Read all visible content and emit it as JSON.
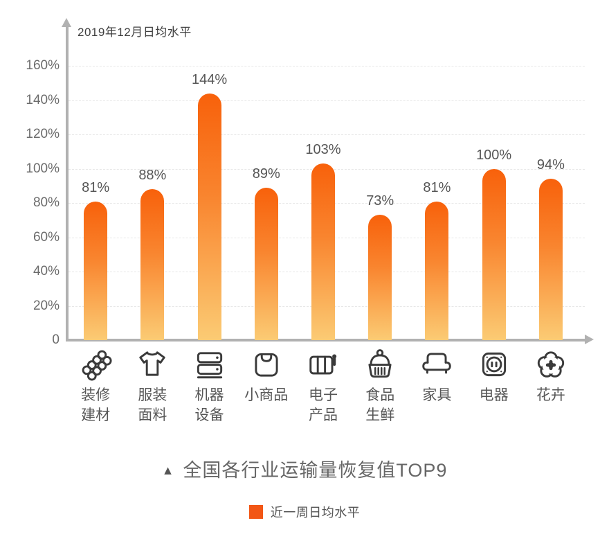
{
  "axis": {
    "title": "2019年12月日均水平"
  },
  "chart_data": {
    "type": "bar",
    "title": "全国各行业运输量恢复值TOP9",
    "ylabel": "2019年12月日均水平",
    "ylim": [
      0,
      170
    ],
    "grid": "horizontal dashed",
    "legend_position": "bottom-center",
    "categories": [
      "装修建材",
      "服装面料",
      "机器设备",
      "小商品",
      "电子产品",
      "食品生鲜",
      "家具",
      "电器",
      "花卉"
    ],
    "values": [
      81,
      88,
      144,
      89,
      103,
      73,
      81,
      100,
      94
    ],
    "value_labels": [
      "81%",
      "88%",
      "144%",
      "89%",
      "103%",
      "73%",
      "81%",
      "100%",
      "94%"
    ],
    "yticks": [
      {
        "value": 0,
        "label": "0"
      },
      {
        "value": 20,
        "label": "20%"
      },
      {
        "value": 40,
        "label": "40%"
      },
      {
        "value": 60,
        "label": "60%"
      },
      {
        "value": 80,
        "label": "80%"
      },
      {
        "value": 100,
        "label": "100%"
      },
      {
        "value": 120,
        "label": "120%"
      },
      {
        "value": 140,
        "label": "140%"
      },
      {
        "value": 160,
        "label": "160%"
      }
    ],
    "bars": [
      {
        "label": "装修建材",
        "lines": [
          "装修",
          "建材"
        ],
        "icon": "pipes-icon",
        "value": 81,
        "value_label": "81%"
      },
      {
        "label": "服装面料",
        "lines": [
          "服装",
          "面料"
        ],
        "icon": "tshirt-icon",
        "value": 88,
        "value_label": "88%"
      },
      {
        "label": "机器设备",
        "lines": [
          "机器",
          "设备"
        ],
        "icon": "machines-icon",
        "value": 144,
        "value_label": "144%"
      },
      {
        "label": "小商品",
        "lines": [
          "小商品"
        ],
        "icon": "shopping-bag-icon",
        "value": 89,
        "value_label": "89%"
      },
      {
        "label": "电子产品",
        "lines": [
          "电子",
          "产品"
        ],
        "icon": "battery-icon",
        "value": 103,
        "value_label": "103%"
      },
      {
        "label": "食品生鲜",
        "lines": [
          "食品",
          "生鲜"
        ],
        "icon": "food-basket-icon",
        "value": 73,
        "value_label": "73%"
      },
      {
        "label": "家具",
        "lines": [
          "家具"
        ],
        "icon": "sofa-icon",
        "value": 81,
        "value_label": "81%"
      },
      {
        "label": "电器",
        "lines": [
          "电器"
        ],
        "icon": "socket-icon",
        "value": 100,
        "value_label": "100%"
      },
      {
        "label": "花卉",
        "lines": [
          "花卉"
        ],
        "icon": "flower-icon",
        "value": 94,
        "value_label": "94%"
      }
    ],
    "bar_gradient": {
      "top": "#F8610B",
      "bottom": "#FBCB74"
    }
  },
  "footer": {
    "marker": "▲",
    "title": "全国各行业运输量恢复值TOP9"
  },
  "legend": {
    "swatch_color": "#F25615",
    "label": "近一周日均水平"
  },
  "colors": {
    "axis": "#b1b1b1",
    "gridline": "#e7e7e7",
    "tick_text": "#6b6b6b",
    "value_text": "#565656",
    "icon_stroke": "#3a3a3a"
  }
}
